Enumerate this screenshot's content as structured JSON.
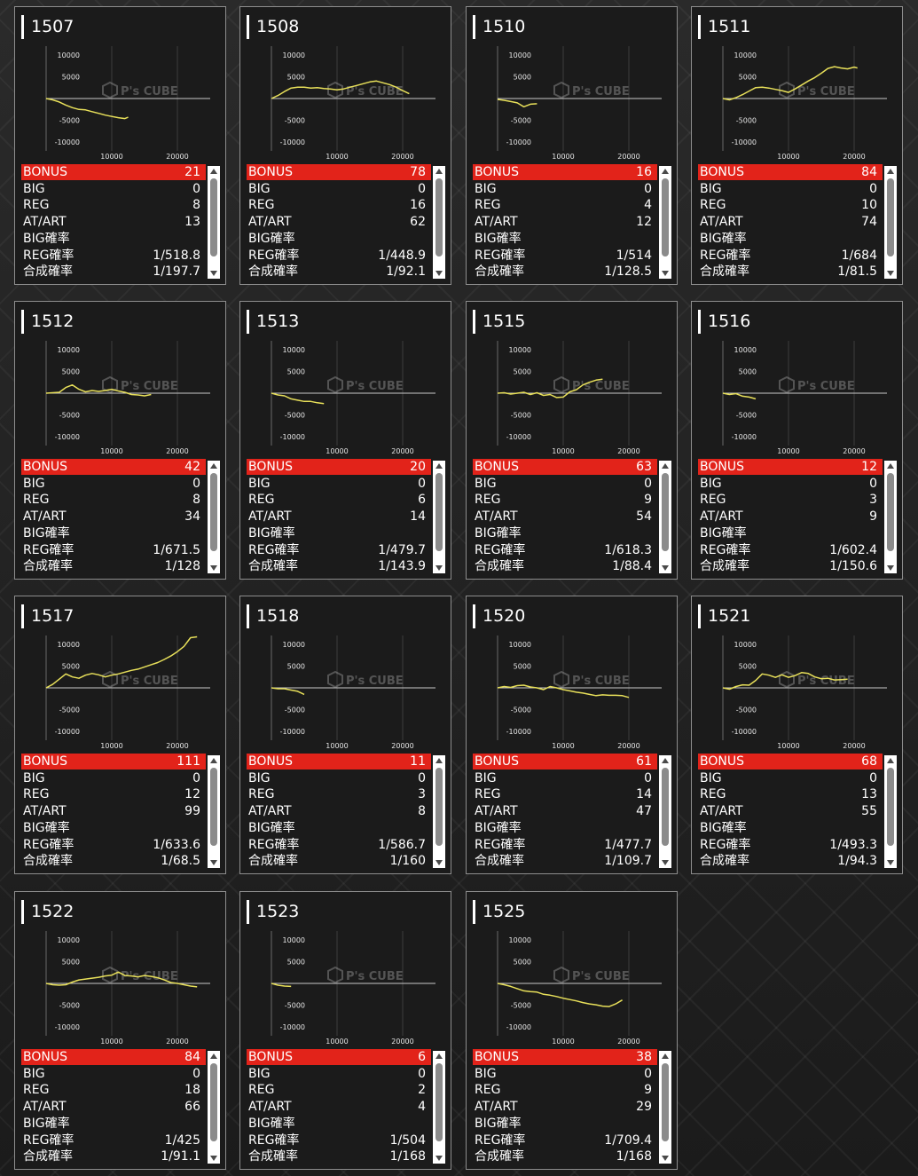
{
  "colors": {
    "bonus_row": "#e2231a",
    "line": "#e8e05a",
    "card_bg": "#1b1b1b"
  },
  "watermark": {
    "text": "P's CUBE",
    "icon": "cube-logo-icon"
  },
  "row_labels": [
    "BONUS",
    "BIG",
    "REG",
    "AT/ART",
    "BIG確率",
    "REG確率",
    "合成確率"
  ],
  "chart_data": [
    {
      "type": "line",
      "title": "1507",
      "x_ticks": [
        10000,
        20000
      ],
      "y_ticks": [
        10000,
        5000,
        -5000,
        -10000
      ],
      "xlim": [
        0,
        25000
      ],
      "ylim": [
        -12000,
        12000
      ],
      "series": [
        {
          "x": [
            0,
            1000,
            2000,
            3000,
            4000,
            5000,
            6000,
            7000,
            8000,
            9000,
            10000,
            11000,
            12000,
            12500
          ],
          "y": [
            0,
            -300,
            -800,
            -1500,
            -2100,
            -2500,
            -2600,
            -3000,
            -3400,
            -3800,
            -4100,
            -4400,
            -4600,
            -4300
          ]
        }
      ]
    },
    {
      "type": "line",
      "title": "1508",
      "x_ticks": [
        10000,
        20000
      ],
      "y_ticks": [
        10000,
        5000,
        -5000,
        -10000
      ],
      "xlim": [
        0,
        25000
      ],
      "ylim": [
        -12000,
        12000
      ],
      "series": [
        {
          "x": [
            0,
            1000,
            2000,
            3000,
            4000,
            5000,
            6000,
            7000,
            8000,
            9000,
            10000,
            11000,
            12000,
            13000,
            14000,
            15000,
            16000,
            17000,
            18000,
            19000,
            20000,
            21000
          ],
          "y": [
            0,
            700,
            1600,
            2400,
            2600,
            2600,
            2400,
            2500,
            2300,
            2200,
            2000,
            2200,
            2600,
            3000,
            3400,
            3800,
            4000,
            3600,
            3200,
            2600,
            1800,
            1100
          ]
        }
      ]
    },
    {
      "type": "line",
      "title": "1510",
      "x_ticks": [
        10000,
        20000
      ],
      "y_ticks": [
        10000,
        5000,
        -5000,
        -10000
      ],
      "xlim": [
        0,
        25000
      ],
      "ylim": [
        -12000,
        12000
      ],
      "series": [
        {
          "x": [
            0,
            1000,
            2000,
            3000,
            4000,
            5000,
            6000
          ],
          "y": [
            -200,
            -400,
            -700,
            -1000,
            -1900,
            -1300,
            -1200
          ]
        }
      ]
    },
    {
      "type": "line",
      "title": "1511",
      "x_ticks": [
        10000,
        20000
      ],
      "y_ticks": [
        10000,
        5000,
        -5000,
        -10000
      ],
      "xlim": [
        0,
        25000
      ],
      "ylim": [
        -12000,
        12000
      ],
      "series": [
        {
          "x": [
            0,
            1000,
            2000,
            3000,
            4000,
            5000,
            6000,
            7000,
            8000,
            9000,
            10000,
            11000,
            12000,
            13000,
            14000,
            15000,
            16000,
            17000,
            18000,
            19000,
            20000,
            20500
          ],
          "y": [
            0,
            -300,
            200,
            900,
            1700,
            2500,
            2600,
            2400,
            2100,
            1800,
            1400,
            2200,
            3100,
            4000,
            4800,
            5800,
            6900,
            7300,
            7000,
            6800,
            7200,
            7000
          ]
        }
      ]
    },
    {
      "type": "line",
      "title": "1512",
      "x_ticks": [
        10000,
        20000
      ],
      "y_ticks": [
        10000,
        5000,
        -5000,
        -10000
      ],
      "xlim": [
        0,
        25000
      ],
      "ylim": [
        -12000,
        12000
      ],
      "series": [
        {
          "x": [
            0,
            1000,
            2000,
            3000,
            4000,
            5000,
            6000,
            7000,
            8000,
            9000,
            10000,
            11000,
            12000,
            13000,
            14000,
            15000,
            16000
          ],
          "y": [
            0,
            100,
            200,
            1300,
            1900,
            900,
            300,
            600,
            400,
            600,
            900,
            500,
            200,
            -300,
            -400,
            -600,
            -300
          ]
        }
      ]
    },
    {
      "type": "line",
      "title": "1513",
      "x_ticks": [
        10000,
        20000
      ],
      "y_ticks": [
        10000,
        5000,
        -5000,
        -10000
      ],
      "xlim": [
        0,
        25000
      ],
      "ylim": [
        -12000,
        12000
      ],
      "series": [
        {
          "x": [
            0,
            1000,
            2000,
            3000,
            4000,
            5000,
            6000,
            7000,
            8000
          ],
          "y": [
            0,
            -400,
            -600,
            -1300,
            -1600,
            -1900,
            -1900,
            -2200,
            -2400
          ]
        }
      ]
    },
    {
      "type": "line",
      "title": "1515",
      "x_ticks": [
        10000,
        20000
      ],
      "y_ticks": [
        10000,
        5000,
        -5000,
        -10000
      ],
      "xlim": [
        0,
        25000
      ],
      "ylim": [
        -12000,
        12000
      ],
      "series": [
        {
          "x": [
            0,
            1000,
            2000,
            3000,
            4000,
            5000,
            6000,
            7000,
            8000,
            9000,
            10000,
            11000,
            12000,
            13000,
            14000,
            15000,
            16000
          ],
          "y": [
            0,
            100,
            -200,
            0,
            200,
            -300,
            100,
            -500,
            -300,
            -1000,
            -900,
            300,
            800,
            1900,
            2500,
            3000,
            3200
          ]
        }
      ]
    },
    {
      "type": "line",
      "title": "1516",
      "x_ticks": [
        10000,
        20000
      ],
      "y_ticks": [
        10000,
        5000,
        -5000,
        -10000
      ],
      "xlim": [
        0,
        25000
      ],
      "ylim": [
        -12000,
        12000
      ],
      "series": [
        {
          "x": [
            0,
            1000,
            2000,
            3000,
            4000,
            5000
          ],
          "y": [
            0,
            -300,
            -100,
            -700,
            -900,
            -1300
          ]
        }
      ]
    },
    {
      "type": "line",
      "title": "1517",
      "x_ticks": [
        10000,
        20000
      ],
      "y_ticks": [
        10000,
        5000,
        -5000,
        -10000
      ],
      "xlim": [
        0,
        25000
      ],
      "ylim": [
        -12000,
        12000
      ],
      "series": [
        {
          "x": [
            0,
            1000,
            2000,
            3000,
            4000,
            5000,
            6000,
            7000,
            8000,
            9000,
            10000,
            11000,
            12000,
            13000,
            14000,
            15000,
            16000,
            17000,
            18000,
            19000,
            20000,
            21000,
            22000,
            23000
          ],
          "y": [
            0,
            800,
            2000,
            3200,
            2500,
            2200,
            2900,
            3300,
            3000,
            2500,
            2900,
            3200,
            3600,
            4000,
            4300,
            4800,
            5300,
            5800,
            6500,
            7300,
            8300,
            9500,
            11500,
            11700
          ]
        }
      ]
    },
    {
      "type": "line",
      "title": "1518",
      "x_ticks": [
        10000,
        20000
      ],
      "y_ticks": [
        10000,
        5000,
        -5000,
        -10000
      ],
      "xlim": [
        0,
        25000
      ],
      "ylim": [
        -12000,
        12000
      ],
      "series": [
        {
          "x": [
            0,
            1000,
            2000,
            3000,
            4000,
            5000
          ],
          "y": [
            0,
            -200,
            -200,
            -500,
            -800,
            -1500
          ]
        }
      ]
    },
    {
      "type": "line",
      "title": "1520",
      "x_ticks": [
        10000,
        20000
      ],
      "y_ticks": [
        10000,
        5000,
        -5000,
        -10000
      ],
      "xlim": [
        0,
        25000
      ],
      "ylim": [
        -12000,
        12000
      ],
      "series": [
        {
          "x": [
            0,
            1000,
            2000,
            3000,
            4000,
            5000,
            6000,
            7000,
            8000,
            9000,
            10000,
            11000,
            12000,
            13000,
            14000,
            15000,
            16000,
            17000,
            18000,
            19000,
            20000
          ],
          "y": [
            0,
            300,
            100,
            500,
            600,
            200,
            0,
            -400,
            300,
            0,
            -400,
            -700,
            -1000,
            -1200,
            -1500,
            -1800,
            -1600,
            -1700,
            -1700,
            -1800,
            -2200
          ]
        }
      ]
    },
    {
      "type": "line",
      "title": "1521",
      "x_ticks": [
        10000,
        20000
      ],
      "y_ticks": [
        10000,
        5000,
        -5000,
        -10000
      ],
      "xlim": [
        0,
        25000
      ],
      "ylim": [
        -12000,
        12000
      ],
      "series": [
        {
          "x": [
            0,
            1000,
            2000,
            3000,
            4000,
            5000,
            6000,
            7000,
            8000,
            9000,
            10000,
            11000,
            12000,
            13000,
            14000,
            15000,
            16000,
            17000,
            18000,
            19000
          ],
          "y": [
            0,
            -300,
            300,
            700,
            600,
            1700,
            3200,
            2900,
            2400,
            3000,
            2400,
            2800,
            3500,
            3300,
            2500,
            2100,
            2200,
            1800,
            1900,
            2000
          ]
        }
      ]
    },
    {
      "type": "line",
      "title": "1522",
      "x_ticks": [
        10000,
        20000
      ],
      "y_ticks": [
        10000,
        5000,
        -5000,
        -10000
      ],
      "xlim": [
        0,
        25000
      ],
      "ylim": [
        -12000,
        12000
      ],
      "series": [
        {
          "x": [
            0,
            1000,
            2000,
            3000,
            4000,
            5000,
            6000,
            7000,
            8000,
            9000,
            10000,
            11000,
            12000,
            13000,
            14000,
            15000,
            16000,
            17000,
            18000,
            19000,
            20000,
            21000,
            22000,
            23000
          ],
          "y": [
            0,
            -300,
            -400,
            -300,
            300,
            800,
            1000,
            1200,
            1400,
            1700,
            1900,
            2600,
            1800,
            1700,
            1500,
            1800,
            1600,
            1300,
            800,
            200,
            0,
            -300,
            -600,
            -800
          ]
        }
      ]
    },
    {
      "type": "line",
      "title": "1523",
      "x_ticks": [
        10000,
        20000
      ],
      "y_ticks": [
        10000,
        5000,
        -5000,
        -10000
      ],
      "xlim": [
        0,
        25000
      ],
      "ylim": [
        -12000,
        12000
      ],
      "series": [
        {
          "x": [
            0,
            1000,
            2000,
            3000
          ],
          "y": [
            0,
            -400,
            -600,
            -700
          ]
        }
      ]
    },
    {
      "type": "line",
      "title": "1525",
      "x_ticks": [
        10000,
        20000
      ],
      "y_ticks": [
        10000,
        5000,
        -5000,
        -10000
      ],
      "xlim": [
        0,
        25000
      ],
      "ylim": [
        -12000,
        12000
      ],
      "series": [
        {
          "x": [
            0,
            1000,
            2000,
            3000,
            4000,
            5000,
            6000,
            7000,
            8000,
            9000,
            10000,
            11000,
            12000,
            13000,
            14000,
            15000,
            16000,
            17000,
            18000,
            19000
          ],
          "y": [
            0,
            -300,
            -700,
            -1200,
            -1700,
            -1900,
            -2000,
            -2500,
            -2700,
            -3000,
            -3400,
            -3700,
            -4000,
            -4400,
            -4700,
            -4900,
            -5200,
            -5300,
            -4700,
            -3800
          ]
        }
      ]
    }
  ],
  "machines": [
    {
      "id": "1507",
      "stats": [
        "21",
        "0",
        "8",
        "13",
        "",
        "1/518.8",
        "1/197.7"
      ]
    },
    {
      "id": "1508",
      "stats": [
        "78",
        "0",
        "16",
        "62",
        "",
        "1/448.9",
        "1/92.1"
      ]
    },
    {
      "id": "1510",
      "stats": [
        "16",
        "0",
        "4",
        "12",
        "",
        "1/514",
        "1/128.5"
      ]
    },
    {
      "id": "1511",
      "stats": [
        "84",
        "0",
        "10",
        "74",
        "",
        "1/684",
        "1/81.5"
      ]
    },
    {
      "id": "1512",
      "stats": [
        "42",
        "0",
        "8",
        "34",
        "",
        "1/671.5",
        "1/128"
      ]
    },
    {
      "id": "1513",
      "stats": [
        "20",
        "0",
        "6",
        "14",
        "",
        "1/479.7",
        "1/143.9"
      ]
    },
    {
      "id": "1515",
      "stats": [
        "63",
        "0",
        "9",
        "54",
        "",
        "1/618.3",
        "1/88.4"
      ]
    },
    {
      "id": "1516",
      "stats": [
        "12",
        "0",
        "3",
        "9",
        "",
        "1/602.4",
        "1/150.6"
      ]
    },
    {
      "id": "1517",
      "stats": [
        "111",
        "0",
        "12",
        "99",
        "",
        "1/633.6",
        "1/68.5"
      ]
    },
    {
      "id": "1518",
      "stats": [
        "11",
        "0",
        "3",
        "8",
        "",
        "1/586.7",
        "1/160"
      ]
    },
    {
      "id": "1520",
      "stats": [
        "61",
        "0",
        "14",
        "47",
        "",
        "1/477.7",
        "1/109.7"
      ]
    },
    {
      "id": "1521",
      "stats": [
        "68",
        "0",
        "13",
        "55",
        "",
        "1/493.3",
        "1/94.3"
      ]
    },
    {
      "id": "1522",
      "stats": [
        "84",
        "0",
        "18",
        "66",
        "",
        "1/425",
        "1/91.1"
      ]
    },
    {
      "id": "1523",
      "stats": [
        "6",
        "0",
        "2",
        "4",
        "",
        "1/504",
        "1/168"
      ]
    },
    {
      "id": "1525",
      "stats": [
        "38",
        "0",
        "9",
        "29",
        "",
        "1/709.4",
        "1/168"
      ]
    }
  ]
}
